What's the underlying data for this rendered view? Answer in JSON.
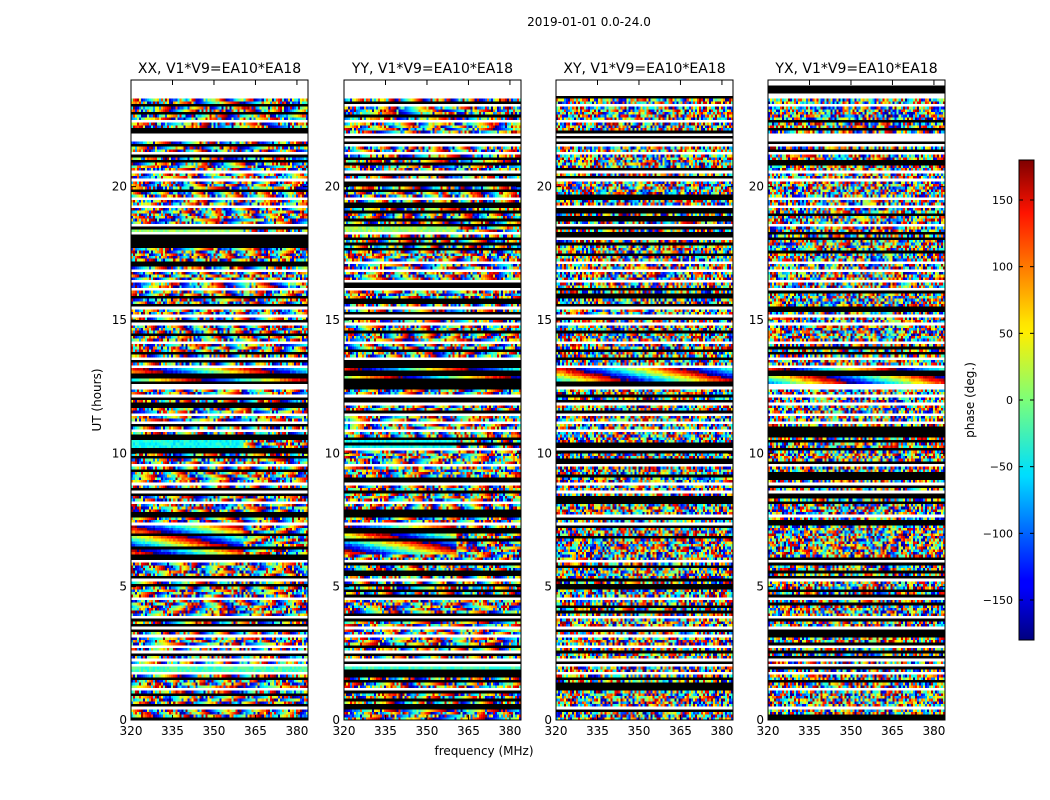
{
  "chart_data": {
    "type": "heatmap",
    "title": "2019-01-01 0.0-24.0",
    "xlabel": "frequency (MHz)",
    "ylabel": "UT (hours)",
    "xlim": [
      320,
      384
    ],
    "ylim": [
      0,
      24
    ],
    "xticks": [
      320,
      335,
      350,
      365,
      380
    ],
    "yticks": [
      0,
      5,
      10,
      15,
      20
    ],
    "panels": [
      {
        "title": "XX, V1*V9=EA10*EA18",
        "style": "parallel"
      },
      {
        "title": "YY, V1*V9=EA10*EA18",
        "style": "parallel"
      },
      {
        "title": "XY, V1*V9=EA10*EA18",
        "style": "cross"
      },
      {
        "title": "YX, V1*V9=EA10*EA18",
        "style": "cross"
      }
    ],
    "colorbar": {
      "label": "phase (deg.)",
      "range": [
        -180,
        180
      ],
      "ticks": [
        -150,
        -100,
        -50,
        0,
        50,
        100,
        150
      ],
      "colormap": "jet"
    },
    "flagged_ut_hours": [
      [
        0.08,
        0.14
      ],
      [
        0.42,
        0.47
      ],
      [
        0.78,
        0.84
      ],
      [
        1.12,
        1.18
      ],
      [
        1.45,
        1.52
      ],
      [
        1.72,
        1.82
      ],
      [
        2.02,
        2.08
      ],
      [
        2.22,
        2.3
      ],
      [
        2.48,
        2.56
      ],
      [
        2.75,
        2.82
      ],
      [
        3.1,
        3.16
      ],
      [
        3.45,
        3.52
      ],
      [
        3.78,
        3.86
      ],
      [
        4.18,
        4.24
      ],
      [
        4.52,
        4.58
      ],
      [
        4.88,
        4.94
      ],
      [
        5.22,
        5.3
      ],
      [
        5.55,
        5.62
      ],
      [
        5.9,
        5.98
      ],
      [
        6.18,
        6.24
      ],
      [
        7.32,
        7.38
      ],
      [
        7.62,
        7.72
      ],
      [
        7.88,
        7.95
      ],
      [
        8.15,
        8.22
      ],
      [
        8.48,
        8.55
      ],
      [
        8.82,
        8.88
      ],
      [
        9.15,
        9.22
      ],
      [
        9.52,
        9.6
      ],
      [
        9.78,
        9.84
      ],
      [
        10.12,
        10.2
      ],
      [
        10.48,
        10.55
      ],
      [
        10.82,
        10.88
      ],
      [
        11.12,
        11.2
      ],
      [
        11.45,
        11.52
      ],
      [
        11.8,
        11.86
      ],
      [
        12.1,
        12.16
      ],
      [
        12.42,
        12.6
      ],
      [
        13.2,
        13.28
      ],
      [
        13.55,
        13.62
      ],
      [
        14.12,
        14.18
      ],
      [
        14.85,
        14.95
      ],
      [
        15.12,
        15.18
      ],
      [
        15.45,
        15.52
      ],
      [
        15.78,
        15.84
      ],
      [
        16.12,
        16.2
      ],
      [
        16.45,
        16.52
      ],
      [
        16.78,
        16.86
      ],
      [
        17.15,
        17.22
      ],
      [
        17.48,
        17.55
      ],
      [
        17.78,
        17.84
      ],
      [
        18.02,
        18.08
      ],
      [
        18.22,
        18.3
      ],
      [
        18.55,
        18.62
      ],
      [
        18.88,
        18.95
      ],
      [
        19.22,
        19.3
      ],
      [
        19.55,
        19.62
      ],
      [
        19.88,
        19.95
      ],
      [
        20.22,
        20.3
      ],
      [
        20.55,
        20.62
      ],
      [
        20.88,
        20.95
      ],
      [
        21.22,
        21.3
      ],
      [
        21.55,
        21.6
      ],
      [
        21.75,
        22.05
      ],
      [
        22.4,
        22.48
      ],
      [
        23.0,
        23.06
      ],
      [
        23.3,
        24.0
      ]
    ],
    "coherent_bands": [
      {
        "panels": [
          0,
          1
        ],
        "ut": [
          1.82,
          2.02
        ],
        "freq": [
          320,
          384
        ],
        "phase": -20
      },
      {
        "panels": [
          0,
          1
        ],
        "ut": [
          6.24,
          7.32
        ],
        "freq": [
          320,
          361
        ],
        "phase": "wrapping ramp"
      },
      {
        "panels": [
          0,
          1
        ],
        "ut": [
          10.2,
          10.48
        ],
        "freq": [
          320,
          361
        ],
        "phase": -40
      },
      {
        "panels": [
          0,
          1,
          2,
          3
        ],
        "ut": [
          12.6,
          13.2
        ],
        "freq": [
          320,
          384
        ],
        "phase": "wrapping ramp"
      },
      {
        "panels": [
          0,
          1
        ],
        "ut": [
          18.3,
          18.55
        ],
        "freq": [
          320,
          361
        ],
        "phase": 10
      }
    ]
  }
}
